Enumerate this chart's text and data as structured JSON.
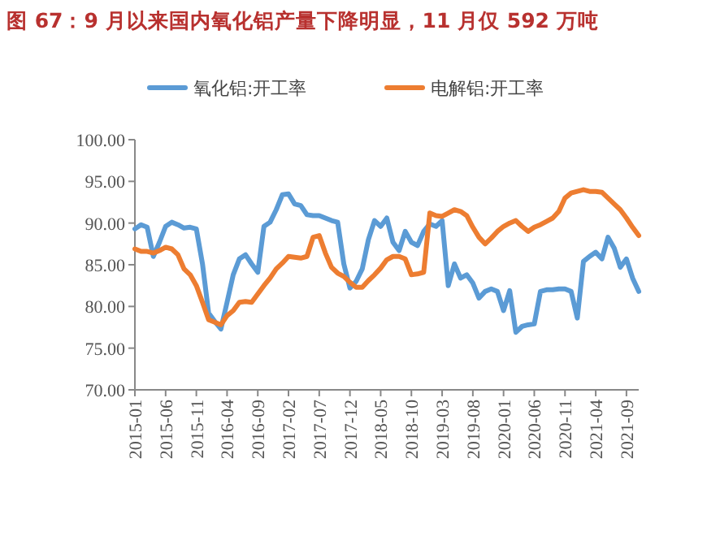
{
  "chart_data": {
    "type": "line",
    "title": "图 67：9 月以来国内氧化铝产量下降明显，11 月仅 592 万吨",
    "categories": [
      "2015-01",
      null,
      null,
      null,
      null,
      "2015-06",
      null,
      null,
      null,
      null,
      "2015-11",
      null,
      null,
      null,
      null,
      "2016-04",
      null,
      null,
      null,
      null,
      "2016-09",
      null,
      null,
      null,
      null,
      "2017-02",
      null,
      null,
      null,
      null,
      "2017-07",
      null,
      null,
      null,
      null,
      "2017-12",
      null,
      null,
      null,
      null,
      "2018-05",
      null,
      null,
      null,
      null,
      "2018-10",
      null,
      null,
      null,
      null,
      "2019-03",
      null,
      null,
      null,
      null,
      "2019-08",
      null,
      null,
      null,
      null,
      "2020-01",
      null,
      null,
      null,
      null,
      "2020-06",
      null,
      null,
      null,
      null,
      "2020-11",
      null,
      null,
      null,
      null,
      "2021-04",
      null,
      null,
      null,
      null,
      "2021-09",
      null,
      null
    ],
    "series": [
      {
        "name": "氧化铝:开工率",
        "color": "#5b9bd5",
        "values": [
          89.3,
          89.8,
          89.5,
          86.0,
          87.7,
          89.6,
          90.1,
          89.8,
          89.4,
          89.5,
          89.3,
          85.1,
          79.2,
          78.2,
          77.3,
          80.5,
          83.8,
          85.7,
          86.2,
          85.1,
          84.1,
          89.6,
          90.1,
          91.6,
          93.4,
          93.5,
          92.3,
          92.1,
          91.0,
          90.9,
          90.9,
          90.6,
          90.3,
          90.1,
          85.1,
          82.2,
          83.0,
          84.5,
          88.0,
          90.3,
          89.6,
          90.6,
          87.7,
          86.7,
          89.0,
          87.7,
          87.3,
          89.0,
          89.9,
          89.6,
          90.3,
          82.5,
          85.1,
          83.4,
          83.8,
          82.8,
          81.0,
          81.8,
          82.1,
          81.8,
          79.5,
          81.9,
          76.9,
          77.6,
          77.8,
          77.9,
          81.8,
          82.0,
          82.0,
          82.1,
          82.1,
          81.8,
          78.6,
          85.4,
          86.0,
          86.5,
          85.7,
          88.3,
          87.0,
          84.7,
          85.7,
          83.4,
          81.8
        ]
      },
      {
        "name": "电解铝:开工率",
        "color": "#ed7d31",
        "values": [
          86.9,
          86.6,
          86.6,
          86.4,
          86.7,
          87.1,
          86.9,
          86.2,
          84.5,
          83.8,
          82.5,
          80.5,
          78.4,
          78.1,
          77.8,
          78.9,
          79.5,
          80.5,
          80.6,
          80.5,
          81.5,
          82.5,
          83.4,
          84.5,
          85.2,
          86.0,
          85.9,
          85.8,
          86.0,
          88.3,
          88.5,
          86.4,
          84.7,
          84.0,
          83.6,
          82.9,
          82.3,
          82.3,
          83.1,
          83.8,
          84.6,
          85.6,
          86.0,
          86.0,
          85.7,
          83.8,
          83.9,
          84.1,
          91.2,
          90.9,
          90.8,
          91.2,
          91.6,
          91.4,
          90.9,
          89.5,
          88.3,
          87.5,
          88.2,
          89.0,
          89.6,
          90.0,
          90.3,
          89.6,
          89.0,
          89.5,
          89.8,
          90.2,
          90.6,
          91.4,
          93.0,
          93.6,
          93.8,
          94.0,
          93.8,
          93.8,
          93.7,
          93.0,
          92.3,
          91.6,
          90.6,
          89.5,
          88.5
        ]
      }
    ],
    "ylim": [
      70,
      100
    ],
    "yticks": [
      {
        "value": 70,
        "label": "70.00"
      },
      {
        "value": 75,
        "label": "75.00"
      },
      {
        "value": 80,
        "label": "80.00"
      },
      {
        "value": 85,
        "label": "85.00"
      },
      {
        "value": 90,
        "label": "90.00"
      },
      {
        "value": 95,
        "label": "95.00"
      },
      {
        "value": 100,
        "label": "100.00"
      }
    ],
    "legend": "top",
    "grid": false,
    "marker": "none",
    "line_style": "solid"
  }
}
